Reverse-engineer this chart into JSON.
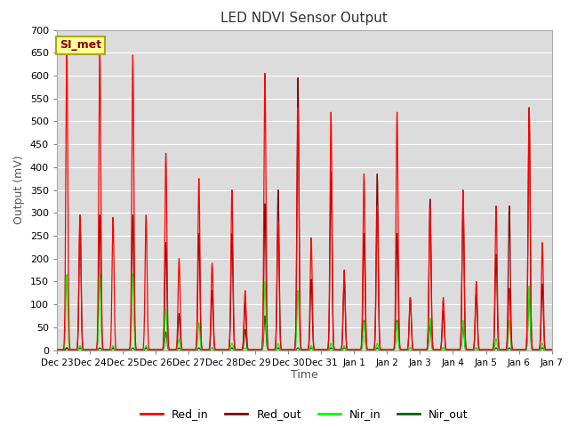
{
  "title": "LED NDVI Sensor Output",
  "xlabel": "Time",
  "ylabel": "Output (mV)",
  "ylim": [
    0,
    700
  ],
  "yticks": [
    0,
    50,
    100,
    150,
    200,
    250,
    300,
    350,
    400,
    450,
    500,
    550,
    600,
    650,
    700
  ],
  "annotation": "SI_met",
  "colors": {
    "Red_in": "#ff0000",
    "Red_out": "#8b0000",
    "Nir_in": "#00ff00",
    "Nir_out": "#006400"
  },
  "bg_color": "#dcdcdc",
  "x_tick_labels": [
    "Dec 23",
    "Dec 24",
    "Dec 25",
    "Dec 26",
    "Dec 27",
    "Dec 28",
    "Dec 29",
    "Dec 30",
    "Dec 31",
    "Jan 1",
    "Jan 2",
    "Jan 3",
    "Jan 4",
    "Jan 5",
    "Jan 6",
    "Jan 7"
  ],
  "day_data": [
    {
      "ri1": 660,
      "ri2": 295,
      "ro1": 5,
      "ro2": 295,
      "ni1": 165,
      "ni2": 10,
      "no1": 5,
      "no2": 5
    },
    {
      "ri1": 660,
      "ri2": 290,
      "ro1": 295,
      "ro2": 5,
      "ni1": 165,
      "ni2": 10,
      "no1": 5,
      "no2": 5
    },
    {
      "ri1": 645,
      "ri2": 295,
      "ro1": 295,
      "ro2": 5,
      "ni1": 165,
      "ni2": 10,
      "no1": 5,
      "no2": 5
    },
    {
      "ri1": 430,
      "ri2": 200,
      "ro1": 235,
      "ro2": 80,
      "ni1": 90,
      "ni2": 25,
      "no1": 40,
      "no2": 5
    },
    {
      "ri1": 375,
      "ri2": 190,
      "ro1": 255,
      "ro2": 130,
      "ni1": 60,
      "ni2": 5,
      "no1": 5,
      "no2": 5
    },
    {
      "ri1": 350,
      "ri2": 130,
      "ro1": 255,
      "ro2": 105,
      "ni1": 15,
      "ni2": 5,
      "no1": 5,
      "no2": 45
    },
    {
      "ri1": 605,
      "ri2": 280,
      "ro1": 320,
      "ro2": 350,
      "ni1": 150,
      "ni2": 15,
      "no1": 75,
      "no2": 5
    },
    {
      "ri1": 530,
      "ri2": 245,
      "ro1": 595,
      "ro2": 155,
      "ni1": 130,
      "ni2": 10,
      "no1": 5,
      "no2": 5
    },
    {
      "ri1": 520,
      "ri2": 175,
      "ro1": 390,
      "ro2": 155,
      "ni1": 15,
      "ni2": 10,
      "no1": 5,
      "no2": 5
    },
    {
      "ri1": 385,
      "ri2": 315,
      "ro1": 255,
      "ro2": 385,
      "ni1": 60,
      "ni2": 15,
      "no1": 65,
      "no2": 5
    },
    {
      "ri1": 520,
      "ri2": 115,
      "ro1": 255,
      "ro2": 115,
      "ni1": 60,
      "ni2": 5,
      "no1": 65,
      "no2": 5
    },
    {
      "ri1": 310,
      "ri2": 115,
      "ro1": 330,
      "ro2": 85,
      "ni1": 70,
      "ni2": 5,
      "no1": 55,
      "no2": 5
    },
    {
      "ri1": 350,
      "ri2": 150,
      "ro1": 325,
      "ro2": 125,
      "ni1": 65,
      "ni2": 5,
      "no1": 55,
      "no2": 5
    },
    {
      "ri1": 315,
      "ri2": 135,
      "ro1": 210,
      "ro2": 315,
      "ni1": 25,
      "ni2": 65,
      "no1": 5,
      "no2": 5
    },
    {
      "ri1": 530,
      "ri2": 235,
      "ro1": 530,
      "ro2": 145,
      "ni1": 140,
      "ni2": 15,
      "no1": 135,
      "no2": 5
    }
  ]
}
